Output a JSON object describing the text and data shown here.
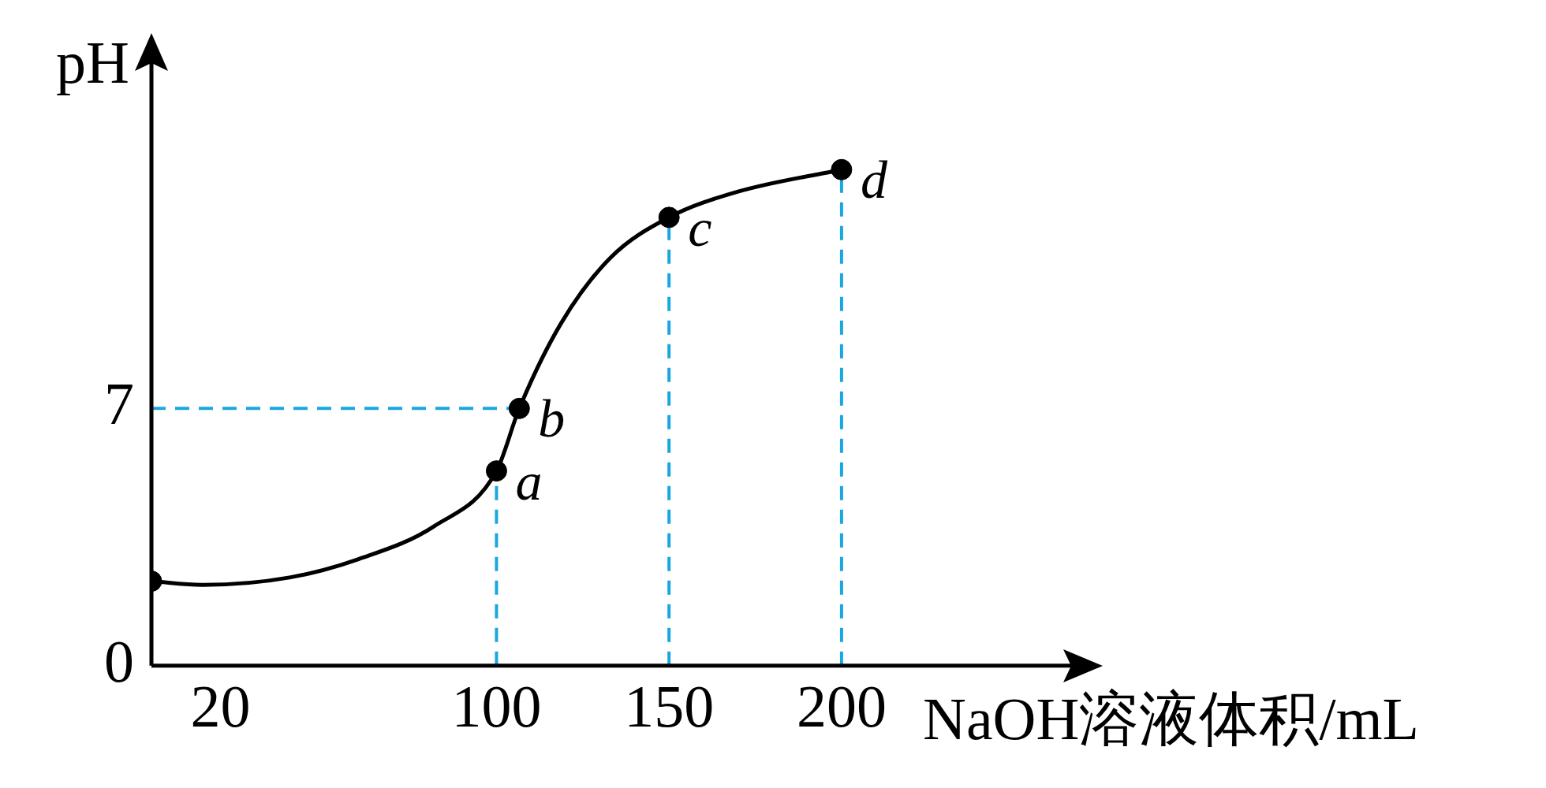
{
  "chart_data": {
    "type": "line",
    "xlabel": "NaOH溶液体积/mL",
    "ylabel": "pH",
    "xlim": [
      0,
      267
    ],
    "xticks": [
      20,
      100,
      150,
      200
    ],
    "ylim": [
      0,
      16.4
    ],
    "yticks": [
      0,
      7
    ],
    "grid": false,
    "legend": false,
    "series": [
      {
        "color": "#000000",
        "marker": "none",
        "x": [
          0,
          15,
          40,
          60,
          82,
          100,
          106.6,
          118.6,
          133,
          150,
          170,
          200
        ],
        "values": [
          2.3,
          2.2,
          2.4,
          2.9,
          3.8,
          5.3,
          7,
          9.3,
          11.1,
          12.2,
          12.9,
          13.5
        ]
      },
      {
        "type": "scatter",
        "color": "#000000",
        "marker": "circle",
        "x": [
          0,
          100,
          106.6,
          150,
          200
        ],
        "values": [
          2.3,
          5.3,
          7,
          12.2,
          13.5
        ]
      }
    ],
    "ref_lines": [
      {
        "axis": "x",
        "value": 100,
        "color": "#1aa7e0",
        "line_style": "dashed"
      },
      {
        "axis": "x",
        "value": 150,
        "color": "#1aa7e0",
        "line_style": "dashed"
      },
      {
        "axis": "x",
        "value": 200,
        "color": "#1aa7e0",
        "line_style": "dashed"
      },
      {
        "axis": "y",
        "value": 7,
        "color": "#1aa7e0",
        "line_style": "dashed"
      }
    ],
    "annotations": [
      {
        "text": "a",
        "x": 100,
        "y": 5.3
      },
      {
        "text": "b",
        "x": 106.6,
        "y": 7
      },
      {
        "text": "c",
        "x": 150,
        "y": 12.2
      },
      {
        "text": "d",
        "x": 200,
        "y": 13.5
      }
    ]
  }
}
